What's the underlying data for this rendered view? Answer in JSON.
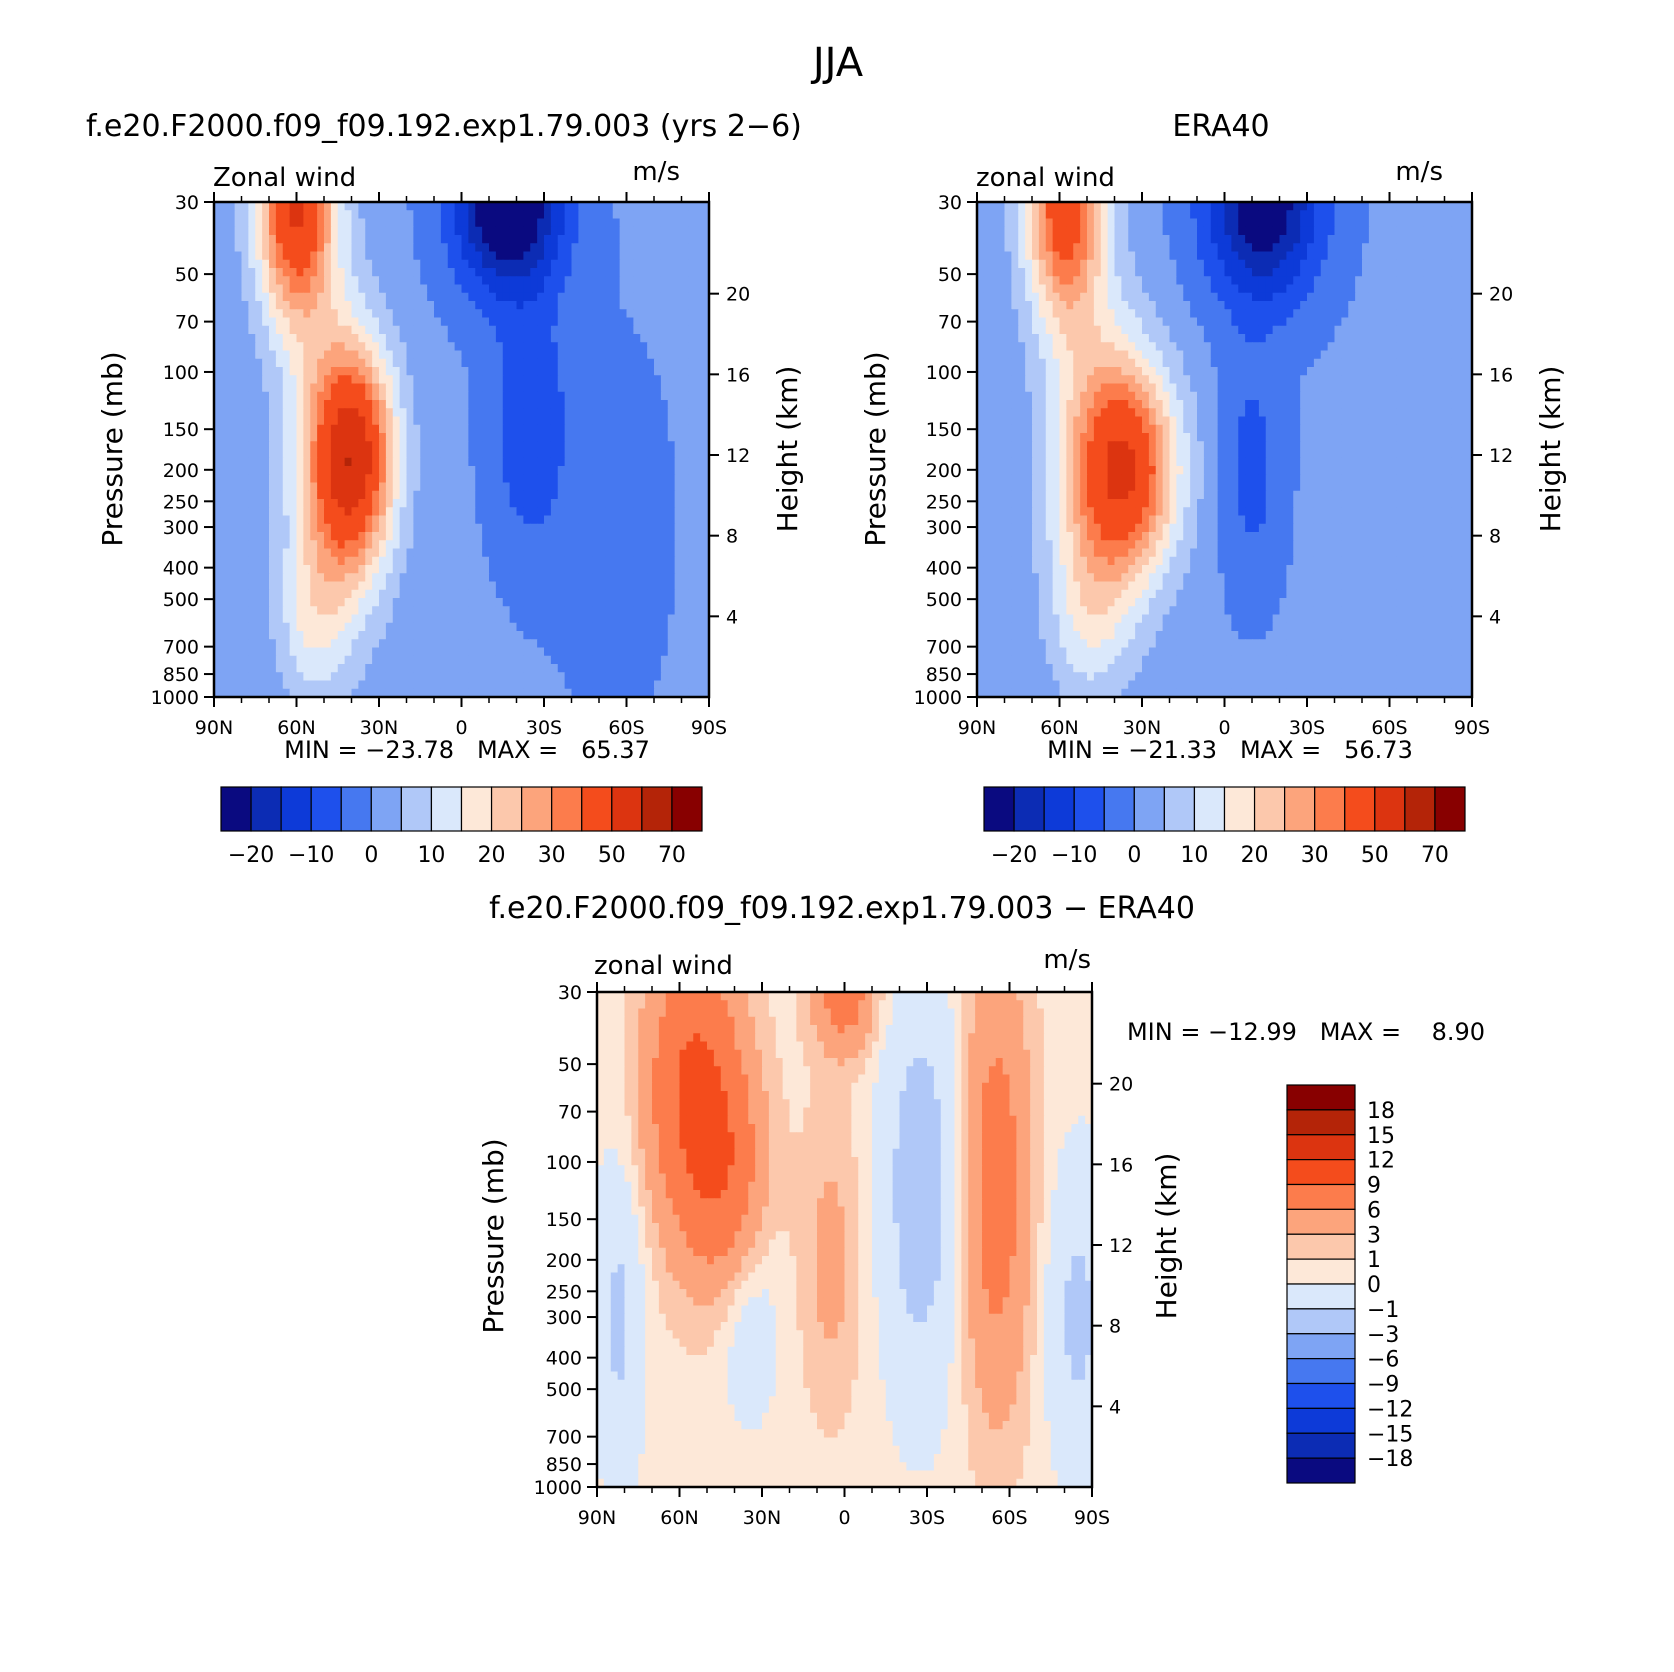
{
  "figure_title": "JJA",
  "palettes": {
    "main": [
      "#0a0a80",
      "#0c2cb4",
      "#0d3ad8",
      "#1e50ec",
      "#4678f0",
      "#7ea4f4",
      "#b0c8f8",
      "#dae8fb",
      "#fde8d8",
      "#fcc8ac",
      "#fca47c",
      "#fc7c4c",
      "#f44c1c",
      "#dc3410",
      "#b42408",
      "#880000"
    ],
    "diff": [
      "#0a0a80",
      "#0c2cb4",
      "#0d3ad8",
      "#1e50ec",
      "#4678f0",
      "#7ea4f4",
      "#b0c8f8",
      "#dae8fb",
      "#fde8d8",
      "#fcc8ac",
      "#fca47c",
      "#fc7c4c",
      "#f44c1c",
      "#dc3410",
      "#b42408",
      "#880000"
    ]
  },
  "chart_data": [
    {
      "type": "heatmap",
      "id": "model",
      "title": "f.e20.F2000.f09_f09.192.exp1.79.003 (yrs 2−6)",
      "left_label": "Zonal wind",
      "right_label": "m/s",
      "ylabel": "Pressure (mb)",
      "ylabel_right": "Height (km)",
      "x_ticks": [
        "90N",
        "60N",
        "30N",
        "0",
        "30S",
        "60S",
        "90S"
      ],
      "y_ticks": [
        "30",
        "50",
        "70",
        "100",
        "150",
        "200",
        "250",
        "300",
        "400",
        "500",
        "700",
        "850",
        "1000"
      ],
      "y_right_ticks": [
        "20",
        "16",
        "12",
        "8",
        "4"
      ],
      "min_max": "MIN = −23.78   MAX =   65.37",
      "levels": [
        -25,
        -20,
        -15,
        -10,
        -5,
        0,
        5,
        10,
        15,
        20,
        25,
        30,
        40,
        50,
        60,
        70
      ],
      "colorbar_labels": [
        "−20",
        "−10",
        "0",
        "10",
        "20",
        "30",
        "50",
        "70"
      ],
      "features": [
        {
          "lat": -17,
          "p": 30,
          "sx": 14,
          "sy": 0.9,
          "amp": -30
        },
        {
          "lat": -25,
          "p": 150,
          "sx": 10,
          "sy": 1.2,
          "amp": -10
        },
        {
          "lat": 45,
          "p": 200,
          "sx": 12,
          "sy": 1.5,
          "amp": 27
        },
        {
          "lat": 60,
          "p": 30,
          "sx": 10,
          "sy": 1.2,
          "amp": 45
        },
        {
          "lat": 38,
          "p": 180,
          "sx": 10,
          "sy": 1.0,
          "amp": 30
        },
        {
          "lat": 55,
          "p": 600,
          "sx": 9,
          "sy": 0.8,
          "amp": 10
        },
        {
          "lat": -55,
          "p": 300,
          "sx": 20,
          "sy": 2.5,
          "amp": -2
        }
      ],
      "base": -4
    },
    {
      "type": "heatmap",
      "id": "obs",
      "title": "ERA40",
      "left_label": "zonal wind",
      "right_label": "m/s",
      "ylabel": "Pressure (mb)",
      "ylabel_right": "Height (km)",
      "x_ticks": [
        "90N",
        "60N",
        "30N",
        "0",
        "30S",
        "60S",
        "90S"
      ],
      "y_ticks": [
        "30",
        "50",
        "70",
        "100",
        "150",
        "200",
        "250",
        "300",
        "400",
        "500",
        "700",
        "850",
        "1000"
      ],
      "y_right_ticks": [
        "20",
        "16",
        "12",
        "8",
        "4"
      ],
      "min_max": "MIN = −21.33   MAX =   56.73",
      "levels": [
        -25,
        -20,
        -15,
        -10,
        -5,
        0,
        5,
        10,
        15,
        20,
        25,
        30,
        40,
        50,
        60,
        70
      ],
      "colorbar_labels": [
        "−20",
        "−10",
        "0",
        "10",
        "20",
        "30",
        "50",
        "70"
      ],
      "features": [
        {
          "lat": -14,
          "p": 30,
          "sx": 15,
          "sy": 1.0,
          "amp": -26
        },
        {
          "lat": -10,
          "p": 200,
          "sx": 8,
          "sy": 1.2,
          "amp": -8
        },
        {
          "lat": 45,
          "p": 200,
          "sx": 13,
          "sy": 1.5,
          "amp": 26
        },
        {
          "lat": 58,
          "p": 30,
          "sx": 10,
          "sy": 1.2,
          "amp": 40
        },
        {
          "lat": 32,
          "p": 200,
          "sx": 12,
          "sy": 1.0,
          "amp": 28
        },
        {
          "lat": 50,
          "p": 600,
          "sx": 10,
          "sy": 0.8,
          "amp": 8
        }
      ],
      "base": -4
    },
    {
      "type": "heatmap",
      "id": "diff",
      "title": "f.e20.F2000.f09_f09.192.exp1.79.003 − ERA40",
      "left_label": "zonal wind",
      "right_label": "m/s",
      "ylabel": "Pressure (mb)",
      "ylabel_right": "Height (km)",
      "x_ticks": [
        "90N",
        "60N",
        "30N",
        "0",
        "30S",
        "60S",
        "90S"
      ],
      "y_ticks": [
        "30",
        "50",
        "70",
        "100",
        "150",
        "200",
        "250",
        "300",
        "400",
        "500",
        "700",
        "850",
        "1000"
      ],
      "y_right_ticks": [
        "20",
        "16",
        "12",
        "8",
        "4"
      ],
      "min_max": "MIN = −12.99   MAX =    8.90",
      "levels": [
        -21,
        -18,
        -15,
        -12,
        -9,
        -6,
        -3,
        -1,
        0,
        1,
        3,
        6,
        9,
        12,
        15,
        18
      ],
      "colorbar_labels": [
        "18",
        "15",
        "12",
        "9",
        "6",
        "3",
        "1",
        "0",
        "−1",
        "−3",
        "−6",
        "−9",
        "−12",
        "−15",
        "−18"
      ],
      "features": [
        {
          "lat": -55,
          "p": 120,
          "sx": 9,
          "sy": 2.2,
          "amp": 5
        },
        {
          "lat": -28,
          "p": 120,
          "sx": 10,
          "sy": 2.0,
          "amp": -4
        },
        {
          "lat": -85,
          "p": 300,
          "sx": 8,
          "sy": 1.5,
          "amp": -3
        },
        {
          "lat": 0,
          "p": 30,
          "sx": 8,
          "sy": 0.6,
          "amp": 5
        },
        {
          "lat": 5,
          "p": 200,
          "sx": 8,
          "sy": 1.5,
          "amp": 2
        },
        {
          "lat": 55,
          "p": 60,
          "sx": 12,
          "sy": 1.5,
          "amp": 7
        },
        {
          "lat": 42,
          "p": 120,
          "sx": 10,
          "sy": 1.2,
          "amp": 4
        },
        {
          "lat": 82,
          "p": 300,
          "sx": 6,
          "sy": 1.5,
          "amp": -3
        },
        {
          "lat": 35,
          "p": 300,
          "sx": 8,
          "sy": 1.0,
          "amp": -2
        }
      ],
      "base": -0.5
    }
  ]
}
